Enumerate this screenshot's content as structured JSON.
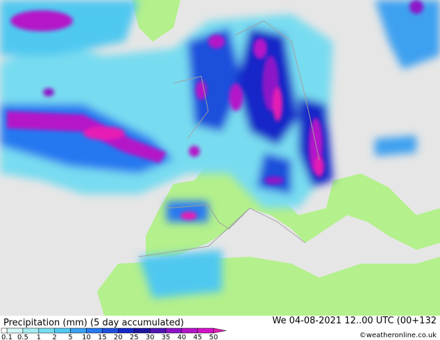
{
  "title": "Precipitation (mm) (5 day accumulated)",
  "valid_time": "We 04-08-2021 12..00 UTC (00+132",
  "credit": "©weatheronline.co.uk",
  "legend": {
    "labels": [
      "0.1",
      "0.5",
      "1",
      "2",
      "5",
      "10",
      "15",
      "20",
      "25",
      "30",
      "35",
      "40",
      "45",
      "50"
    ],
    "colors": [
      "#d2f5f5",
      "#a5ebf0",
      "#78dcf0",
      "#50c8f0",
      "#3ca0f0",
      "#2878f0",
      "#1e50dc",
      "#1428c8",
      "#1e14a0",
      "#5014b4",
      "#8c14c8",
      "#b414c8",
      "#d214c8",
      "#e61eb4"
    ]
  }
}
